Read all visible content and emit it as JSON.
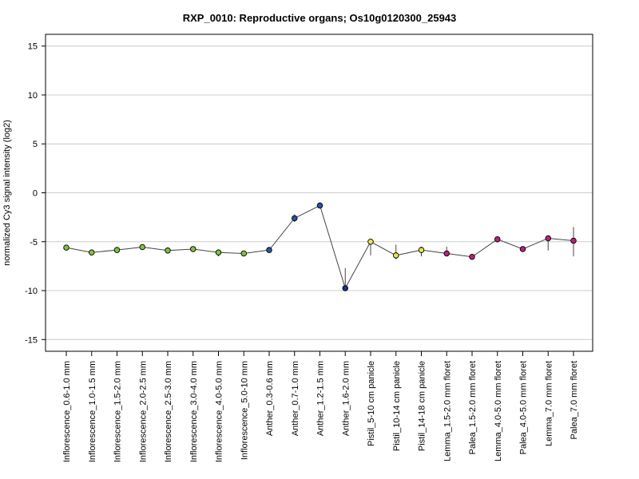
{
  "chart_data": {
    "type": "line",
    "title": "RXP_0010: Reproductive organs; Os10g0120300_25943",
    "xlabel": "",
    "ylabel": "normalized Cy3 signal intensity (log2)",
    "ylim": [
      -16.2,
      16.2
    ],
    "yticks": [
      -15,
      -10,
      -5,
      0,
      5,
      10,
      15
    ],
    "grid": "horizontal",
    "line_color": "#444444",
    "categories": [
      "Inflorescence_0.6-1.0 mm",
      "Inflorescence_1.0-1.5 mm",
      "Inflorescence_1.5-2.0 mm",
      "Inflorescence_2.0-2.5 mm",
      "Inflorescence_2.5-3.0 mm",
      "Inflorescence_3.0-4.0 mm",
      "Inflorescence_4.0-5.0 mm",
      "Inflorescence_5.0-10 mm",
      "Anther_0.3-0.6 mm",
      "Anther_0.7-1.0 mm",
      "Anther_1.2-1.5 mm",
      "Anther_1.6-2.0 mm",
      "Pistil_5-10 cm panicle",
      "Pistil_10-14 cm panicle",
      "Pistil_14-18 cm panicle",
      "Lemma_1.5-2.0 mm floret",
      "Palea_1.5-2.0 mm floret",
      "Lemma_4.0-5.0 mm floret",
      "Palea_4.0-5.0 mm floret",
      "Lemma_7.0 mm floret",
      "Palea_7.0 mm floret"
    ],
    "values": [
      -5.6,
      -6.1,
      -5.85,
      -5.55,
      -5.9,
      -5.75,
      -6.1,
      -6.2,
      -5.85,
      -2.6,
      -1.3,
      -9.75,
      -5.0,
      -6.4,
      -5.85,
      -6.2,
      -6.55,
      -4.75,
      -5.75,
      -4.65,
      -4.9
    ],
    "error_low": [
      null,
      null,
      null,
      null,
      null,
      null,
      -6.5,
      null,
      null,
      -3.0,
      null,
      -10.0,
      -6.4,
      -6.8,
      -6.5,
      -6.5,
      null,
      null,
      null,
      -5.9,
      -6.5
    ],
    "error_high": [
      null,
      null,
      null,
      null,
      null,
      null,
      -5.8,
      null,
      null,
      -2.2,
      null,
      -7.7,
      -4.8,
      -5.3,
      -5.5,
      -5.5,
      null,
      null,
      null,
      -4.5,
      -3.5
    ],
    "point_colors": [
      "#7ec43a",
      "#7ec43a",
      "#7ec43a",
      "#7ec43a",
      "#7ec43a",
      "#7ec43a",
      "#7ec43a",
      "#7ec43a",
      "#2a52a8",
      "#2a52a8",
      "#2a52a8",
      "#1a2f8c",
      "#e6e64a",
      "#e6e64a",
      "#e6e64a",
      "#c01e7e",
      "#c01e7e",
      "#c01e7e",
      "#c01e7e",
      "#c01e7e",
      "#c01e7e"
    ]
  }
}
